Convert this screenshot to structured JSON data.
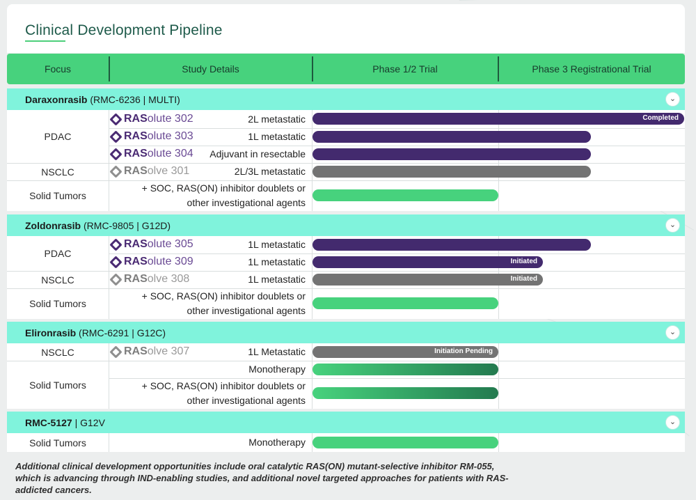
{
  "title": "Clinical Development Pipeline",
  "header": {
    "focus": "Focus",
    "study_details": "Study Details",
    "phase12": "Phase 1/2 Trial",
    "phase3": "Phase 3 Registrational Trial"
  },
  "colors": {
    "accent": "#47d27d",
    "section": "#80f3dc",
    "purple": "#432a6e",
    "grey": "#737373"
  },
  "sections": [
    {
      "name_bold": "Daraxonrasib",
      "name_rest": " (RMC-6236 | MULTI)",
      "focus": [
        "PDAC",
        "NSCLC",
        "Solid Tumors"
      ],
      "studies": [
        {
          "brand": "RAS",
          "suffix": "olute 302",
          "detail": "2L metastatic",
          "status": "Completed"
        },
        {
          "brand": "RAS",
          "suffix": "olute 303",
          "detail": "1L metastatic"
        },
        {
          "brand": "RAS",
          "suffix": "olute 304",
          "detail": "Adjuvant in resectable"
        },
        {
          "brand": "RAS",
          "suffix": "olve 301",
          "detail": "2L/3L metastatic"
        },
        {
          "detail_line1": "+ SOC, RAS(ON) inhibitor doublets or",
          "detail_line2": "other investigational agents"
        }
      ]
    },
    {
      "name_bold": "Zoldonrasib",
      "name_rest": " (RMC-9805 | G12D)",
      "focus": [
        "PDAC",
        "NSCLC",
        "Solid Tumors"
      ],
      "studies": [
        {
          "brand": "RAS",
          "suffix": "olute 305",
          "detail": "1L metastatic"
        },
        {
          "brand": "RAS",
          "suffix": "olute 309",
          "detail": "1L metastatic",
          "status": "Initiated"
        },
        {
          "brand": "RAS",
          "suffix": "olve 308",
          "detail": "1L metastatic",
          "status": "Initiated"
        },
        {
          "detail_line1": "+ SOC, RAS(ON) inhibitor doublets or",
          "detail_line2": "other investigational agents"
        }
      ]
    },
    {
      "name_bold": "Elironrasib",
      "name_rest": " (RMC-6291 | G12C)",
      "focus": [
        "NSCLC",
        "Solid Tumors"
      ],
      "studies": [
        {
          "brand": "RAS",
          "suffix": "olve 307",
          "detail": "1L Metastatic",
          "status": "Initiation Pending"
        },
        {
          "detail": "Monotherapy"
        },
        {
          "detail_line1": "+ SOC, RAS(ON) inhibitor doublets or",
          "detail_line2": "other investigational agents"
        }
      ]
    },
    {
      "name_bold": "RMC-5127",
      "name_rest": " | G12V",
      "focus": [
        "Solid Tumors"
      ],
      "studies": [
        {
          "detail": "Monotherapy"
        }
      ]
    }
  ],
  "footnote": "Additional clinical development opportunities include oral catalytic RAS(ON) mutant-selective inhibitor RM-055, which is advancing through IND-enabling studies, and additional novel targeted approaches for patients with RAS-addicted cancers."
}
